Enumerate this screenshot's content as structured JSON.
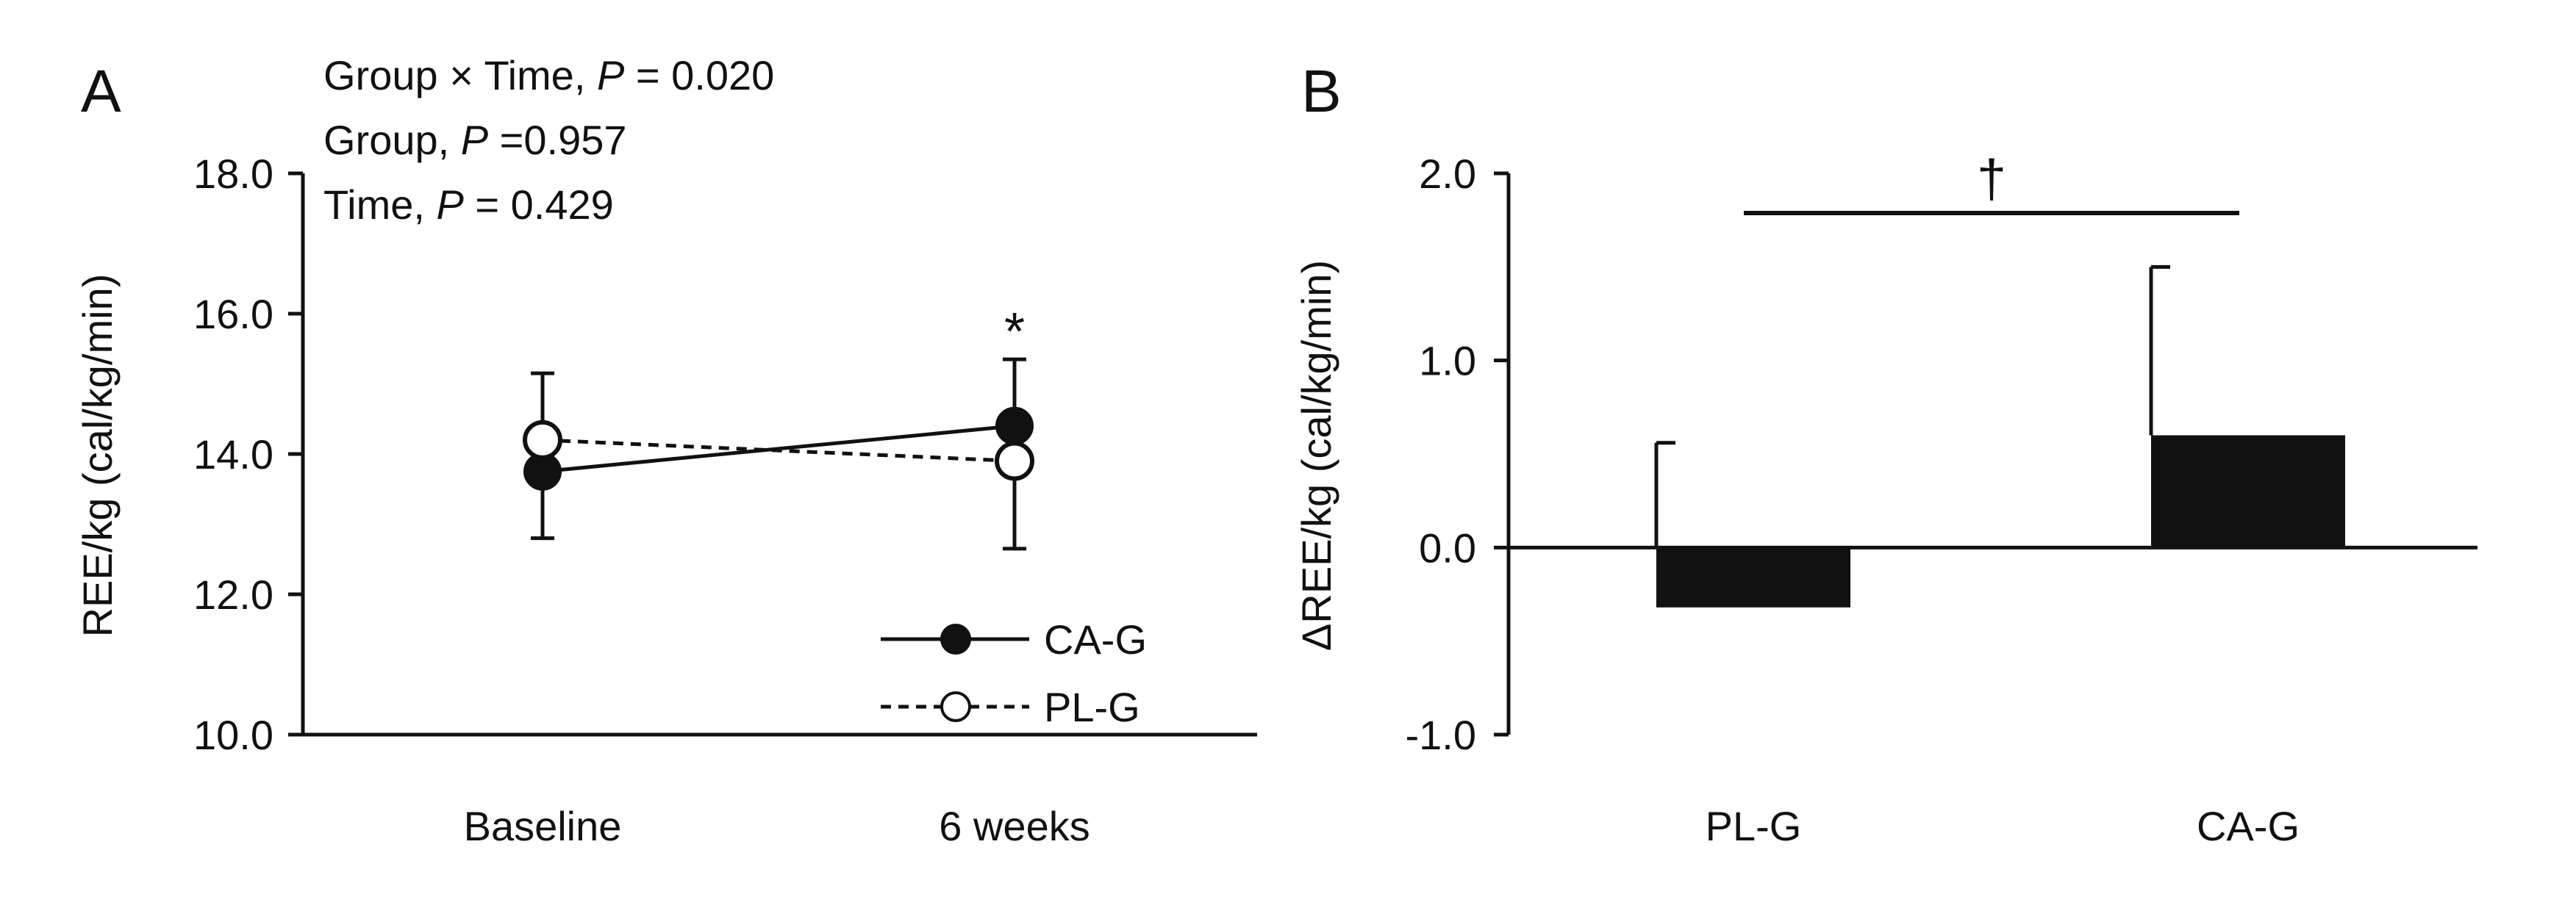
{
  "chart_data": [
    {
      "panel": "A",
      "type": "line",
      "categories": [
        "Baseline",
        "6 weeks"
      ],
      "ylabel": "REE/kg (cal/kg/min)",
      "ylim": [
        10.0,
        18.0
      ],
      "yticks": [
        "10.0",
        "12.0",
        "14.0",
        "16.0",
        "18.0"
      ],
      "stats": [
        {
          "label": "Group × Time, ",
          "p": "P",
          "value": " = 0.020"
        },
        {
          "label": "Group, ",
          "p": "P",
          "value": " =0.957"
        },
        {
          "label": "Time, ",
          "p": "P",
          "value": " = 0.429"
        }
      ],
      "series": [
        {
          "name": "CA-G",
          "style": "solid",
          "marker": "filled",
          "values": [
            13.75,
            14.4
          ],
          "sd": [
            0.95,
            0.95
          ]
        },
        {
          "name": "PL-G",
          "style": "dashed",
          "marker": "open",
          "values": [
            14.2,
            13.9
          ],
          "sd": [
            0.95,
            1.25
          ]
        }
      ],
      "annotations": [
        {
          "text": "*",
          "category": "6 weeks"
        }
      ],
      "legend_position": "bottom-right"
    },
    {
      "panel": "B",
      "type": "bar",
      "categories": [
        "PL-G",
        "CA-G"
      ],
      "values": [
        -0.32,
        0.6
      ],
      "errors": [
        0.88,
        0.9
      ],
      "ylabel": "ΔREE/kg (cal/kg/min)",
      "ylim": [
        -1.0,
        2.0
      ],
      "yticks": [
        "-1.0",
        "0.0",
        "1.0",
        "2.0"
      ],
      "annotations": [
        {
          "text": "†",
          "between": [
            "PL-G",
            "CA-G"
          ]
        }
      ]
    }
  ]
}
